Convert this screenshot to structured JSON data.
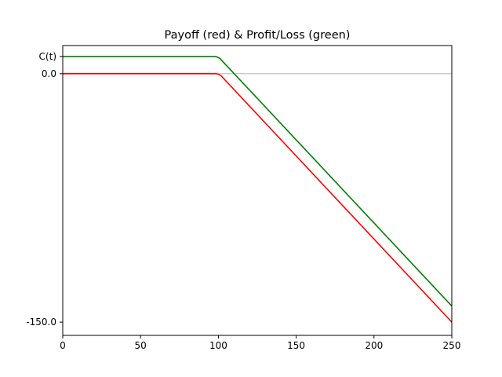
{
  "chart_data": {
    "type": "line",
    "title": "Payoff (red) & Profit/Loss (green)",
    "xlabel": "",
    "ylabel": "",
    "xlim": [
      0,
      250
    ],
    "ylim": [
      -158,
      17
    ],
    "grid": false,
    "x_ticks": [
      {
        "value": 0,
        "label": "0"
      },
      {
        "value": 50,
        "label": "50"
      },
      {
        "value": 100,
        "label": "100"
      },
      {
        "value": 150,
        "label": "150"
      },
      {
        "value": 200,
        "label": "200"
      },
      {
        "value": 250,
        "label": "250"
      }
    ],
    "y_ticks": [
      {
        "value": 10.4,
        "label": "C(t)"
      },
      {
        "value": 0,
        "label": "0.0"
      },
      {
        "value": -150,
        "label": "-150.0"
      }
    ],
    "reference_line": {
      "y": 0,
      "color": "#999999"
    },
    "series": [
      {
        "color": "#ff0000",
        "x": [
          0,
          98,
          100,
          102,
          250
        ],
        "y": [
          0,
          0,
          -0.2,
          -1.5,
          -150
        ]
      },
      {
        "color": "#008000",
        "x": [
          0,
          97,
          99,
          101,
          103,
          250
        ],
        "y": [
          10.4,
          10.4,
          10.2,
          9.2,
          7.2,
          -140.3
        ]
      }
    ]
  }
}
